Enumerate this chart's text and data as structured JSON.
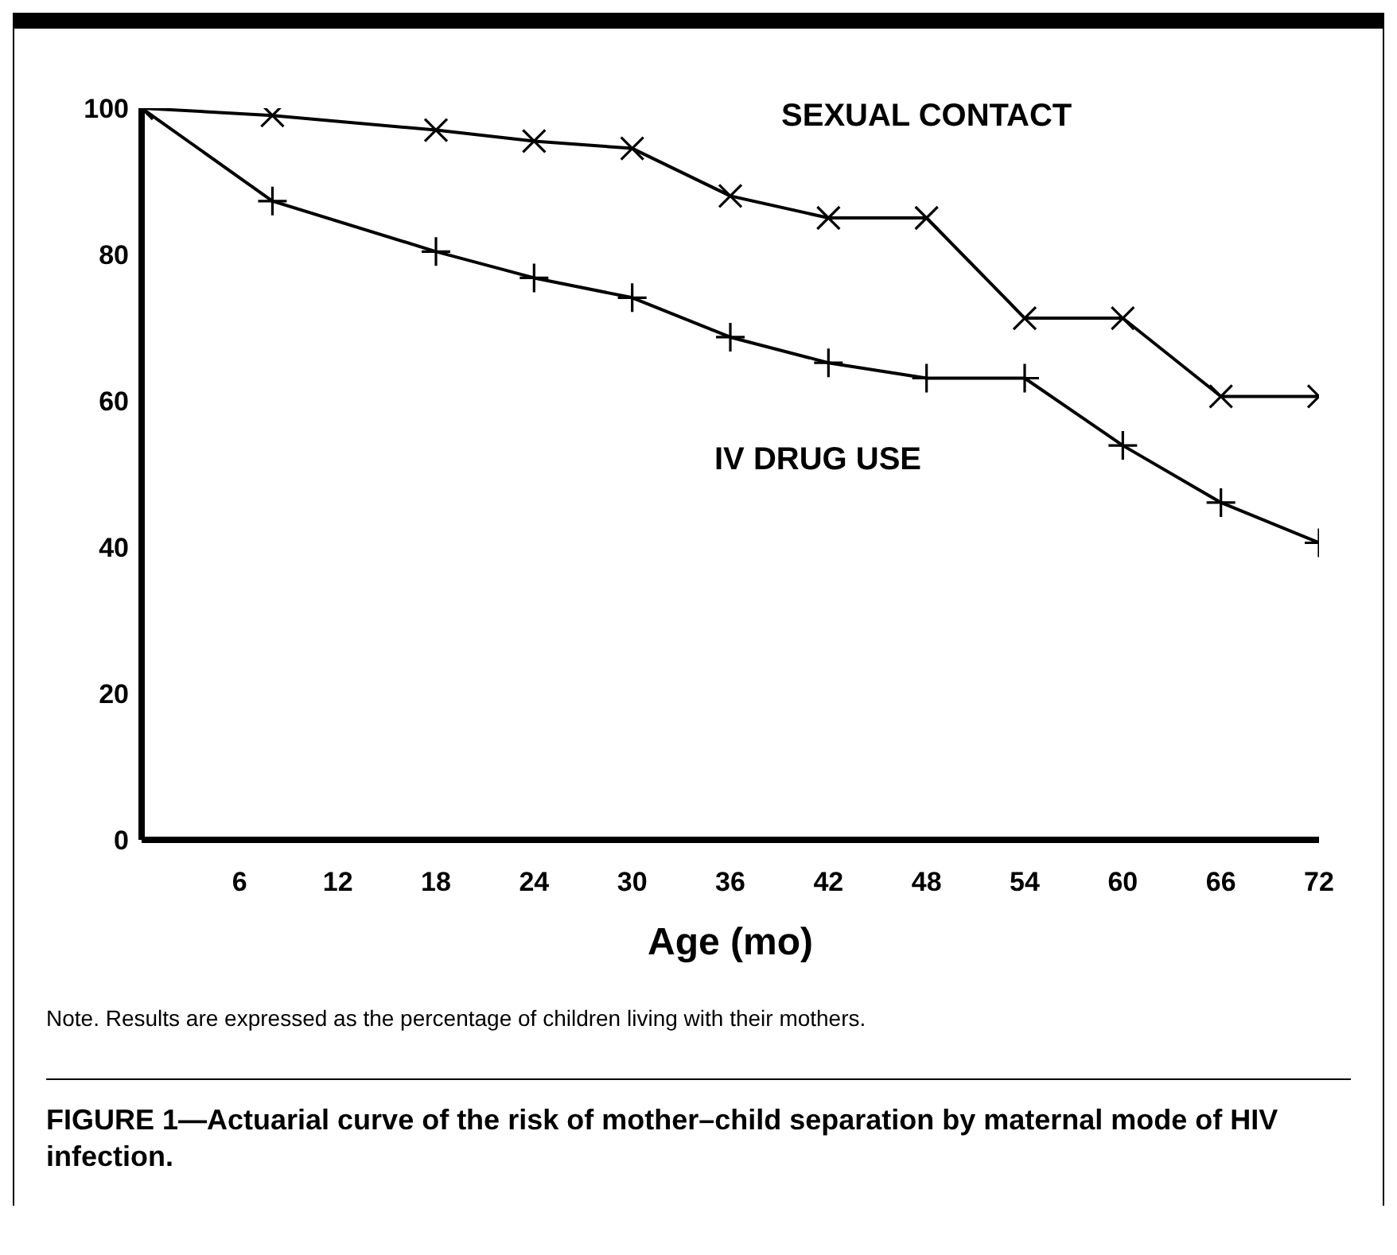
{
  "chart_data": {
    "type": "line",
    "title": "FIGURE 1—Actuarial curve of the risk of mother–child separation by maternal mode of HIV infection.",
    "xlabel": "Age (mo)",
    "annotations": [
      "Note. Results are expressed as the percentage of children living with their mothers."
    ],
    "x": [
      0,
      8,
      18,
      24,
      30,
      36,
      42,
      48,
      54,
      60,
      66,
      72
    ],
    "series": [
      {
        "name": "SEXUAL CONTACT",
        "color": "#000000",
        "marker": "x",
        "values": [
          100,
          99,
          97,
          95.5,
          94.5,
          88,
          85,
          85,
          71.3,
          71.3,
          60.6,
          60.6
        ]
      },
      {
        "name": "IV DRUG USE",
        "color": "#000000",
        "marker": "cross",
        "values": [
          100,
          87.3,
          80.4,
          76.8,
          74.1,
          68.7,
          65.2,
          63.1,
          63.1,
          53.9,
          46.1,
          40.6
        ]
      }
    ],
    "xlim": [
      0,
      72
    ],
    "xticks": [
      6,
      12,
      18,
      24,
      30,
      36,
      42,
      48,
      54,
      60,
      66,
      72
    ],
    "ylim": [
      0,
      100
    ],
    "yticks": [
      0,
      20,
      40,
      60,
      80,
      100
    ],
    "grid": false,
    "legend": false,
    "line_style": "solid"
  }
}
